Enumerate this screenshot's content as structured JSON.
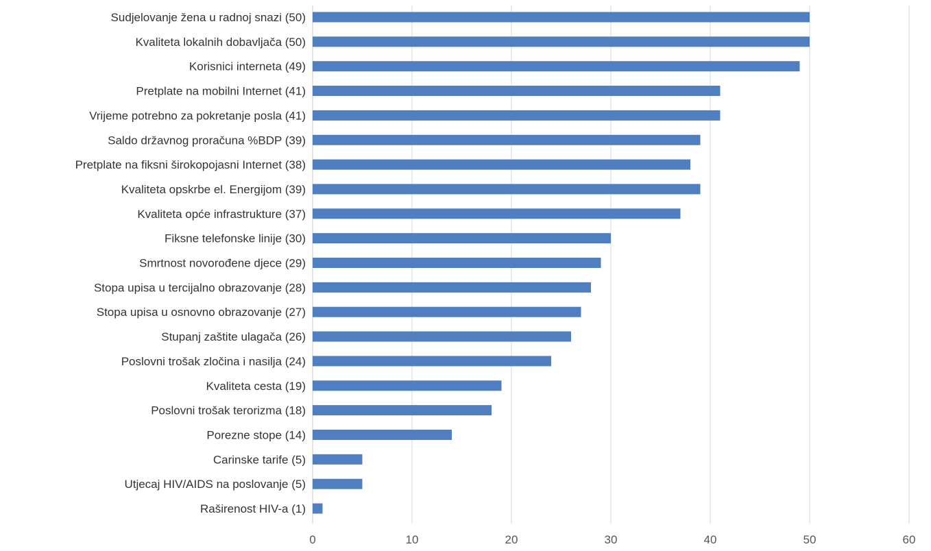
{
  "chart_data": {
    "type": "bar",
    "orientation": "horizontal",
    "categories": [
      "Sudjelovanje žena u radnoj snazi (50)",
      "Kvaliteta lokalnih dobavljača (50)",
      "Korisnici interneta (49)",
      "Pretplate na mobilni Internet (41)",
      "Vrijeme potrebno za pokretanje posla (41)",
      "Saldo državnog proračuna %BDP (39)",
      "Pretplate na fiksni širokopojasni Internet (38)",
      "Kvaliteta opskrbe el. Energijom (39)",
      "Kvaliteta opće infrastrukture (37)",
      "Fiksne telefonske linije (30)",
      "Smrtnost novorođene djece (29)",
      "Stopa upisa u tercijalno obrazovanje (28)",
      "Stopa upisa u osnovno obrazovanje (27)",
      "Stupanj zaštite ulagača (26)",
      "Poslovni trošak zločina i nasilja (24)",
      "Kvaliteta cesta (19)",
      "Poslovni trošak terorizma (18)",
      "Porezne stope (14)",
      "Carinske tarife (5)",
      "Utjecaj HIV/AIDS na poslovanje (5)",
      "Raširenost HIV-a (1)"
    ],
    "values": [
      50,
      50,
      49,
      41,
      41,
      39,
      38,
      39,
      37,
      30,
      29,
      28,
      27,
      26,
      24,
      19,
      18,
      14,
      5,
      5,
      1
    ],
    "xlim": [
      0,
      60
    ],
    "xticks": [
      "0",
      "10",
      "20",
      "30",
      "40",
      "50",
      "60"
    ],
    "grid": true,
    "bar_color": "#4f7fc1",
    "title": "",
    "xlabel": "",
    "ylabel": ""
  }
}
